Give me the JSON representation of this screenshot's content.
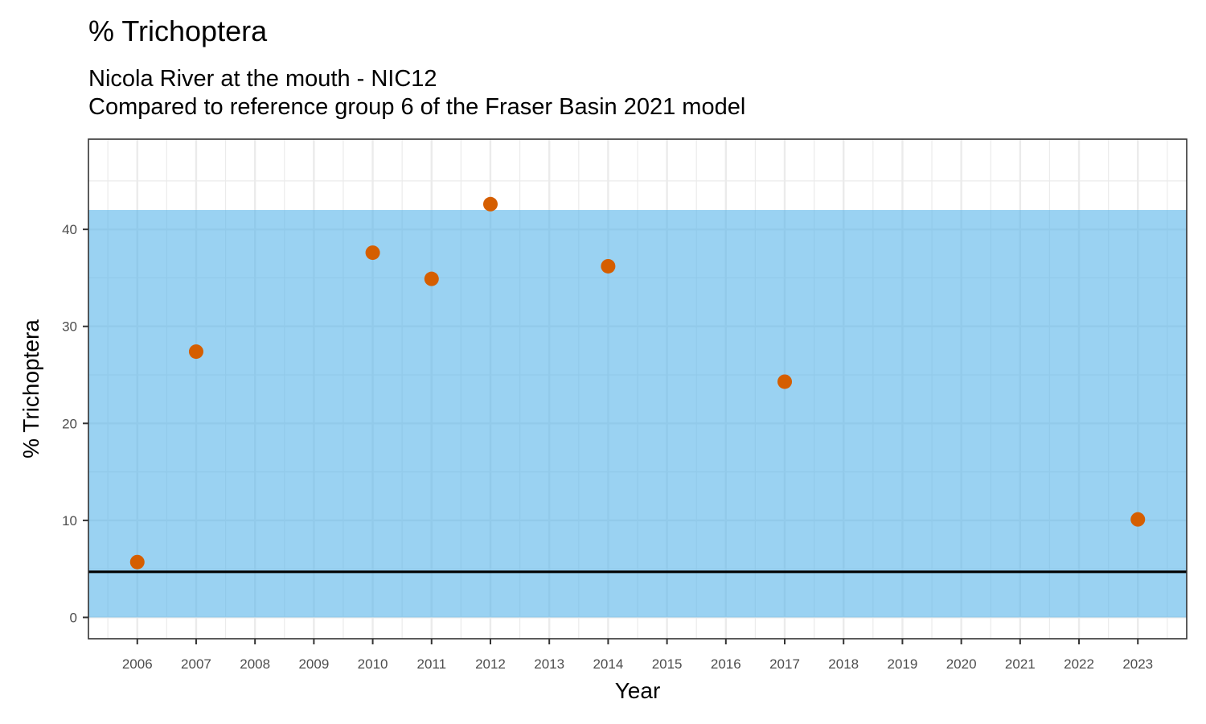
{
  "chart_data": {
    "type": "scatter",
    "title": "% Trichoptera",
    "subtitle_lines": [
      "Nicola River at the mouth - NIC12",
      "Compared to reference group 6 of the Fraser Basin 2021 model"
    ],
    "xlabel": "Year",
    "ylabel": "% Trichoptera",
    "x_ticks": [
      2006,
      2007,
      2008,
      2009,
      2010,
      2011,
      2012,
      2013,
      2014,
      2015,
      2016,
      2017,
      2018,
      2019,
      2020,
      2021,
      2022,
      2023
    ],
    "y_ticks": [
      0,
      10,
      20,
      30,
      40
    ],
    "xlim": [
      2005.17,
      2023.83
    ],
    "ylim": [
      -2.2,
      49.3
    ],
    "grid": true,
    "reference_band": {
      "ymin": 0,
      "ymax": 42,
      "color": "#56B4E9"
    },
    "reference_line": {
      "y": 4.7,
      "color": "#000000"
    },
    "series": [
      {
        "color": "#D55E00",
        "points": [
          {
            "x": 2006,
            "y": 5.7
          },
          {
            "x": 2007,
            "y": 27.4
          },
          {
            "x": 2010,
            "y": 37.6
          },
          {
            "x": 2011,
            "y": 34.9
          },
          {
            "x": 2012,
            "y": 42.6
          },
          {
            "x": 2014,
            "y": 36.2
          },
          {
            "x": 2017,
            "y": 24.3
          },
          {
            "x": 2023,
            "y": 10.1
          }
        ]
      }
    ]
  }
}
